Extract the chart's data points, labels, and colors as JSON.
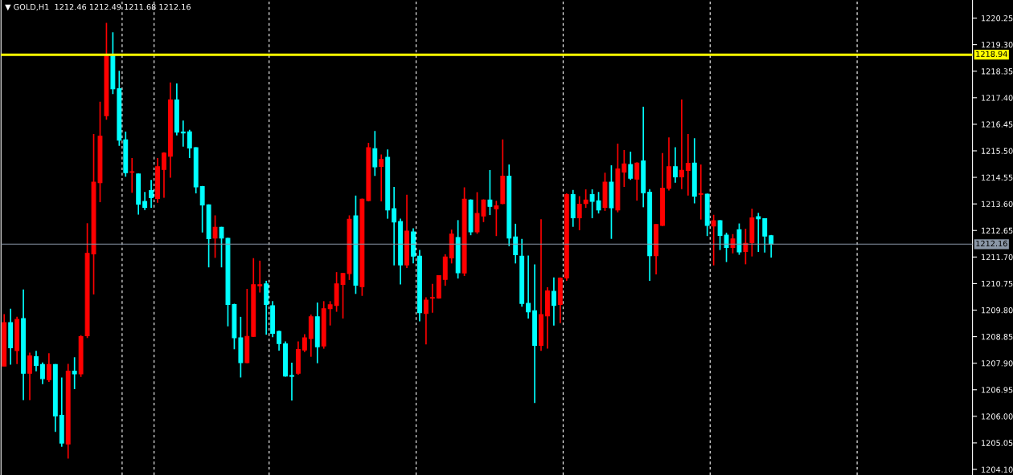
{
  "chart_data": {
    "type": "candlestick",
    "title": "▼ GOLD,H1  1212.46 1212.49 1211.68 1212.16",
    "categories": [
      null,
      null,
      null,
      null,
      null,
      null,
      null,
      null,
      null,
      null,
      null,
      null,
      null,
      null,
      null,
      null,
      null,
      null,
      null,
      null,
      null,
      null,
      null,
      null,
      null,
      null,
      null,
      null,
      null,
      null,
      null,
      null,
      null,
      null,
      null,
      null,
      null,
      null,
      null,
      null,
      null,
      null,
      null,
      null,
      null,
      null,
      null,
      null,
      null,
      null,
      null,
      null,
      null,
      null,
      null,
      null,
      null,
      null,
      null,
      null,
      null,
      null,
      null,
      null,
      null,
      null,
      null,
      null,
      null,
      null,
      null,
      null,
      null,
      null,
      null,
      null,
      null,
      null,
      null,
      null,
      null,
      null,
      null,
      null,
      null,
      null,
      null,
      null,
      null,
      null,
      null,
      null,
      null,
      null,
      null,
      null,
      null,
      null,
      null,
      null,
      null,
      null,
      null,
      null,
      null,
      null,
      null,
      null,
      null,
      null,
      null,
      null,
      null,
      null,
      null,
      null,
      null,
      null,
      null,
      null,
      null,
      null,
      null,
      null,
      null,
      null,
      null,
      null,
      null,
      null,
      null,
      null,
      null,
      null,
      null,
      null,
      null,
      null,
      null,
      null,
      null,
      null,
      null,
      null,
      null,
      null,
      null,
      null,
      null,
      null,
      null,
      null
    ],
    "ohlc": [
      [
        1207.8,
        1209.66,
        1207.8,
        1209.35
      ],
      [
        1209.35,
        1209.85,
        1207.85,
        1208.45
      ],
      [
        1208.35,
        1209.56,
        1207.87,
        1209.47
      ],
      [
        1209.5,
        1210.54,
        1206.58,
        1207.54
      ],
      [
        1207.54,
        1208.28,
        1206.58,
        1208.16
      ],
      [
        1208.13,
        1208.34,
        1207.61,
        1207.82
      ],
      [
        1207.85,
        1207.93,
        1207.15,
        1207.35
      ],
      [
        1207.31,
        1208.26,
        1207.23,
        1207.85
      ],
      [
        1207.85,
        1207.87,
        1205.44,
        1206.01
      ],
      [
        1206.04,
        1207.39,
        1204.91,
        1205.04
      ],
      [
        1205.01,
        1207.88,
        1204.49,
        1207.62
      ],
      [
        1207.62,
        1208.11,
        1206.97,
        1207.52
      ],
      [
        1207.52,
        1208.9,
        1207.41,
        1208.85
      ],
      [
        1208.88,
        1212.91,
        1208.8,
        1211.83
      ],
      [
        1211.81,
        1216.1,
        1210.36,
        1214.38
      ],
      [
        1214.36,
        1217.26,
        1213.66,
        1216.02
      ],
      [
        1216.76,
        1220.08,
        1216.61,
        1218.89
      ],
      [
        1218.89,
        1219.74,
        1217.53,
        1217.72
      ],
      [
        1217.72,
        1218.36,
        1215.68,
        1215.88
      ],
      [
        1215.89,
        1216.19,
        1214.57,
        1214.72
      ],
      [
        1214.73,
        1215.24,
        1214.0,
        1214.75
      ],
      [
        1214.67,
        1214.69,
        1213.22,
        1213.59
      ],
      [
        1213.69,
        1214.03,
        1213.38,
        1213.48
      ],
      [
        1214.08,
        1214.46,
        1213.46,
        1213.82
      ],
      [
        1213.79,
        1215.24,
        1213.64,
        1214.93
      ],
      [
        1214.83,
        1215.45,
        1213.82,
        1215.42
      ],
      [
        1215.31,
        1217.95,
        1214.54,
        1217.32
      ],
      [
        1217.32,
        1217.91,
        1216.05,
        1216.17
      ],
      [
        1216.17,
        1216.58,
        1215.65,
        1216.14
      ],
      [
        1216.18,
        1216.25,
        1215.24,
        1215.6
      ],
      [
        1215.61,
        1215.63,
        1213.98,
        1214.21
      ],
      [
        1214.22,
        1214.24,
        1212.58,
        1213.56
      ],
      [
        1213.57,
        1213.58,
        1211.33,
        1212.36
      ],
      [
        1212.38,
        1213.19,
        1211.67,
        1212.76
      ],
      [
        1212.76,
        1212.78,
        1211.33,
        1212.38
      ],
      [
        1212.37,
        1212.39,
        1209.22,
        1210.0
      ],
      [
        1210.0,
        1210.03,
        1208.4,
        1208.81
      ],
      [
        1208.81,
        1209.56,
        1207.39,
        1207.92
      ],
      [
        1207.92,
        1210.56,
        1207.9,
        1208.86
      ],
      [
        1208.86,
        1211.66,
        1208.84,
        1210.71
      ],
      [
        1210.67,
        1211.57,
        1210.43,
        1210.71
      ],
      [
        1210.74,
        1210.85,
        1208.92,
        1210.0
      ],
      [
        1209.96,
        1210.12,
        1208.83,
        1208.97
      ],
      [
        1209.04,
        1209.07,
        1208.35,
        1208.6
      ],
      [
        1208.59,
        1208.68,
        1207.42,
        1207.44
      ],
      [
        1207.46,
        1207.92,
        1206.56,
        1207.43
      ],
      [
        1207.54,
        1208.68,
        1207.49,
        1208.39
      ],
      [
        1208.37,
        1208.94,
        1208.3,
        1208.81
      ],
      [
        1208.78,
        1209.64,
        1208.13,
        1209.56
      ],
      [
        1209.56,
        1210.07,
        1207.9,
        1208.49
      ],
      [
        1208.52,
        1210.12,
        1208.42,
        1209.85
      ],
      [
        1209.85,
        1210.12,
        1209.25,
        1209.99
      ],
      [
        1209.97,
        1211.16,
        1209.74,
        1210.74
      ],
      [
        1210.72,
        1211.13,
        1209.5,
        1211.11
      ],
      [
        1211.11,
        1213.19,
        1210.88,
        1213.05
      ],
      [
        1213.17,
        1213.9,
        1210.38,
        1210.69
      ],
      [
        1210.64,
        1213.79,
        1210.31,
        1213.77
      ],
      [
        1213.72,
        1215.79,
        1213.7,
        1215.61
      ],
      [
        1215.58,
        1216.21,
        1214.6,
        1214.93
      ],
      [
        1214.94,
        1215.37,
        1213.69,
        1215.19
      ],
      [
        1215.27,
        1215.55,
        1213.07,
        1213.38
      ],
      [
        1213.43,
        1214.21,
        1211.4,
        1212.95
      ],
      [
        1212.97,
        1213.07,
        1210.72,
        1211.42
      ],
      [
        1211.42,
        1213.93,
        1211.31,
        1212.63
      ],
      [
        1212.6,
        1212.73,
        1211.47,
        1211.73
      ],
      [
        1211.73,
        1211.95,
        1209.4,
        1209.71
      ],
      [
        1209.68,
        1210.26,
        1208.57,
        1210.16
      ],
      [
        1210.23,
        1210.74,
        1209.71,
        1210.25
      ],
      [
        1210.23,
        1211.05,
        1210.21,
        1211.03
      ],
      [
        1210.9,
        1211.8,
        1210.67,
        1211.7
      ],
      [
        1211.67,
        1212.68,
        1211.47,
        1212.52
      ],
      [
        1212.4,
        1213.02,
        1210.93,
        1211.14
      ],
      [
        1211.13,
        1214.19,
        1211.02,
        1213.77
      ],
      [
        1213.74,
        1213.76,
        1212.48,
        1212.6
      ],
      [
        1212.6,
        1214.02,
        1212.53,
        1213.26
      ],
      [
        1213.17,
        1213.76,
        1212.95,
        1213.74
      ],
      [
        1213.74,
        1214.81,
        1213.2,
        1213.51
      ],
      [
        1213.43,
        1213.71,
        1212.45,
        1213.53
      ],
      [
        1213.61,
        1215.91,
        1213.59,
        1214.59
      ],
      [
        1214.59,
        1215.01,
        1212.09,
        1212.38
      ],
      [
        1212.42,
        1212.89,
        1211.47,
        1211.78
      ],
      [
        1211.73,
        1212.35,
        1209.92,
        1210.04
      ],
      [
        1210.04,
        1211.75,
        1209.5,
        1209.74
      ],
      [
        1209.78,
        1211.44,
        1206.48,
        1208.54
      ],
      [
        1208.54,
        1213.05,
        1208.34,
        1209.64
      ],
      [
        1209.59,
        1210.62,
        1208.42,
        1210.49
      ],
      [
        1210.47,
        1210.97,
        1209.25,
        1209.97
      ],
      [
        1210.0,
        1210.97,
        1209.33,
        1210.95
      ],
      [
        1210.95,
        1213.98,
        1210.85,
        1213.93
      ],
      [
        1213.93,
        1214.1,
        1212.78,
        1213.1
      ],
      [
        1213.1,
        1213.88,
        1212.66,
        1213.59
      ],
      [
        1213.61,
        1214.12,
        1213.46,
        1213.74
      ],
      [
        1213.93,
        1214.12,
        1213.09,
        1213.69
      ],
      [
        1213.71,
        1214.03,
        1213.26,
        1213.38
      ],
      [
        1213.48,
        1214.72,
        1213.35,
        1214.38
      ],
      [
        1214.38,
        1214.98,
        1212.35,
        1213.46
      ],
      [
        1213.38,
        1215.76,
        1213.3,
        1214.85
      ],
      [
        1214.74,
        1215.53,
        1214.21,
        1215.03
      ],
      [
        1215.01,
        1215.47,
        1214.46,
        1214.52
      ],
      [
        1214.49,
        1215.09,
        1213.72,
        1215.06
      ],
      [
        1215.14,
        1217.08,
        1213.48,
        1214.0
      ],
      [
        1214.02,
        1214.13,
        1210.85,
        1211.75
      ],
      [
        1211.75,
        1212.88,
        1211.08,
        1212.86
      ],
      [
        1212.83,
        1215.42,
        1212.81,
        1214.16
      ],
      [
        1214.16,
        1215.98,
        1214.08,
        1214.93
      ],
      [
        1214.93,
        1215.63,
        1214.36,
        1214.57
      ],
      [
        1214.57,
        1217.34,
        1214.13,
        1214.8
      ],
      [
        1214.8,
        1216.1,
        1213.9,
        1215.05
      ],
      [
        1215.06,
        1215.95,
        1213.62,
        1213.88
      ],
      [
        1213.94,
        1215.01,
        1213.04,
        1213.97
      ],
      [
        1213.95,
        1213.97,
        1212.45,
        1212.83
      ],
      [
        1212.81,
        1213.21,
        1211.4,
        1213.0
      ],
      [
        1213.0,
        1213.02,
        1211.95,
        1212.47
      ],
      [
        1212.48,
        1212.57,
        1211.52,
        1212.04
      ],
      [
        1212.04,
        1212.52,
        1211.83,
        1212.35
      ],
      [
        1212.68,
        1212.9,
        1211.78,
        1211.88
      ],
      [
        1211.9,
        1212.71,
        1211.44,
        1212.19
      ],
      [
        1212.21,
        1213.43,
        1211.72,
        1213.1
      ],
      [
        1213.14,
        1213.28,
        1211.88,
        1213.07
      ],
      [
        1213.07,
        1213.09,
        1211.86,
        1212.45
      ],
      [
        1212.46,
        1212.49,
        1211.68,
        1212.16
      ],
      null,
      null,
      null,
      null,
      null,
      null,
      null,
      null,
      null,
      null,
      null,
      null,
      null,
      null,
      null,
      null,
      null,
      null,
      null,
      null,
      null,
      null,
      null,
      null,
      null,
      null,
      null,
      null,
      null,
      null,
      null
    ],
    "colors": [
      "#ff0000",
      "#00ffff",
      "#ff0000",
      "#00ffff",
      "#ff0000",
      "#00ffff",
      "#00ffff",
      "#ff0000",
      "#00ffff",
      "#00ffff",
      "#ff0000",
      "#00ffff",
      "#ff0000",
      "#ff0000",
      "#ff0000",
      "#ff0000",
      "#ff0000",
      "#00ffff",
      "#00ffff",
      "#00ffff",
      "#ff0000",
      "#00ffff",
      "#00ffff",
      "#00ffff",
      "#ff0000",
      "#ff0000",
      "#ff0000",
      "#00ffff",
      "#00ffff",
      "#00ffff",
      "#00ffff",
      "#00ffff",
      "#00ffff",
      "#ff0000",
      "#00ffff",
      "#00ffff",
      "#00ffff",
      "#00ffff",
      "#ff0000",
      "#ff0000",
      "#ff0000",
      "#00ffff",
      "#00ffff",
      "#00ffff",
      "#00ffff",
      "#00ffff",
      "#ff0000",
      "#ff0000",
      "#ff0000",
      "#00ffff",
      "#ff0000",
      "#ff0000",
      "#ff0000",
      "#ff0000",
      "#ff0000",
      "#00ffff",
      "#ff0000",
      "#ff0000",
      "#00ffff",
      "#ff0000",
      "#00ffff",
      "#00ffff",
      "#00ffff",
      "#ff0000",
      "#00ffff",
      "#00ffff",
      "#ff0000",
      "#ff0000",
      "#ff0000",
      "#ff0000",
      "#ff0000",
      "#00ffff",
      "#ff0000",
      "#00ffff",
      "#ff0000",
      "#ff0000",
      "#00ffff",
      "#ff0000",
      "#ff0000",
      "#00ffff",
      "#00ffff",
      "#00ffff",
      "#00ffff",
      "#00ffff",
      "#ff0000",
      "#ff0000",
      "#00ffff",
      "#ff0000",
      "#ff0000",
      "#00ffff",
      "#ff0000",
      "#ff0000",
      "#00ffff",
      "#00ffff",
      "#ff0000",
      "#00ffff",
      "#ff0000",
      "#ff0000",
      "#00ffff",
      "#ff0000",
      "#00ffff",
      "#00ffff",
      "#ff0000",
      "#ff0000",
      "#ff0000",
      "#00ffff",
      "#ff0000",
      "#ff0000",
      "#00ffff",
      "#ff0000",
      "#00ffff",
      "#ff0000",
      "#00ffff",
      "#00ffff",
      "#ff0000",
      "#00ffff",
      "#ff0000",
      "#ff0000",
      "#00ffff",
      "#00ffff",
      "#00ffff",
      null,
      null,
      null,
      null,
      null,
      null,
      null,
      null,
      null,
      null,
      null,
      null,
      null,
      null,
      null,
      null,
      null,
      null,
      null,
      null,
      null,
      null,
      null,
      null,
      null,
      null,
      null,
      null,
      null,
      null,
      null
    ],
    "ylim": [
      1203.9,
      1220.88
    ],
    "yticks": [
      {
        "value": 1220.25,
        "label": "1220.25"
      },
      {
        "value": 1219.3,
        "label": "1219.30"
      },
      {
        "value": 1218.35,
        "label": "1218.35"
      },
      {
        "value": 1217.4,
        "label": "1217.40"
      },
      {
        "value": 1216.45,
        "label": "1216.45"
      },
      {
        "value": 1215.5,
        "label": "1215.50"
      },
      {
        "value": 1214.55,
        "label": "1214.55"
      },
      {
        "value": 1213.6,
        "label": "1213.60"
      },
      {
        "value": 1212.65,
        "label": "1212.65"
      },
      {
        "value": 1211.7,
        "label": "1211.70"
      },
      {
        "value": 1210.75,
        "label": "1210.75"
      },
      {
        "value": 1209.8,
        "label": "1209.80"
      },
      {
        "value": 1208.85,
        "label": "1208.85"
      },
      {
        "value": 1207.9,
        "label": "1207.90"
      },
      {
        "value": 1206.95,
        "label": "1206.95"
      },
      {
        "value": 1206.0,
        "label": "1206.00"
      },
      {
        "value": 1205.05,
        "label": "1205.05"
      },
      {
        "value": 1204.1,
        "label": "1204.10"
      }
    ],
    "ref_lines": [
      {
        "axis": "y",
        "value": 1218.94,
        "label": "1218.94",
        "color": "#ffff00",
        "line_style": "solid"
      },
      {
        "axis": "y",
        "value": 1212.16,
        "label": "1212.16",
        "color": "#8a96a6",
        "line_style": "solid"
      }
    ],
    "grid": false,
    "legend": false
  }
}
